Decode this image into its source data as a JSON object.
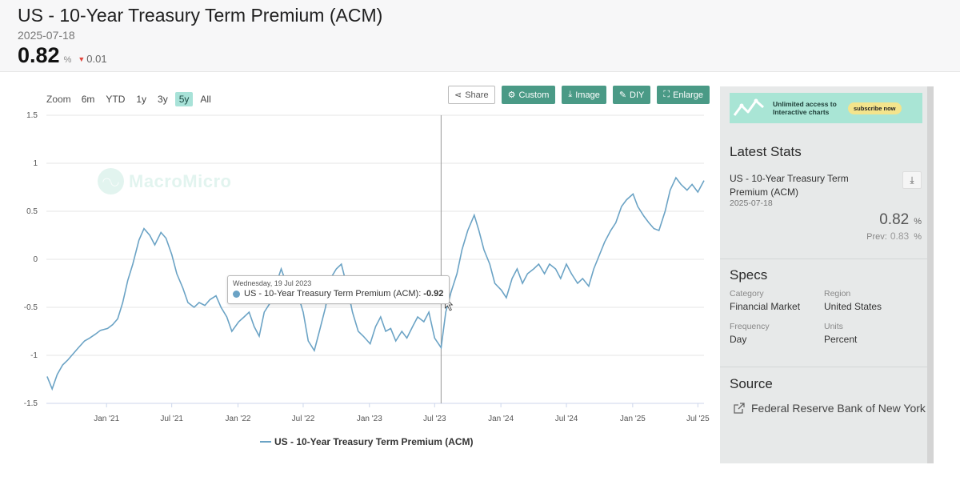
{
  "header": {
    "title": "US - 10-Year Treasury Term Premium (ACM)",
    "date": "2025-07-18",
    "value": "0.82",
    "unit": "%",
    "change": "0.01"
  },
  "zoom": {
    "label": "Zoom",
    "buttons": [
      "6m",
      "YTD",
      "1y",
      "3y",
      "5y",
      "All"
    ],
    "active": "5y"
  },
  "toolbar": {
    "share": "Share",
    "custom": "Custom",
    "image": "Image",
    "diy": "DIY",
    "enlarge": "Enlarge"
  },
  "watermark": "MacroMicro",
  "tooltip": {
    "date": "Wednesday, 19 Jul 2023",
    "series": "US - 10-Year Treasury Term Premium (ACM):",
    "value": "-0.92"
  },
  "chart_data": {
    "type": "line",
    "title": "",
    "xlabel": "",
    "ylabel": "",
    "ylim": [
      -1.5,
      1.5
    ],
    "yticks": [
      "1.5",
      "1",
      "0.5",
      "0",
      "-0.5",
      "-1",
      "-1.5"
    ],
    "xticks": [
      "Jan '21",
      "Jul '21",
      "Jan '22",
      "Jul '22",
      "Jan '23",
      "Jul '23",
      "Jan '24",
      "Jul '24",
      "Jan '25",
      "Jul '25"
    ],
    "xrange": [
      "2020-07-18",
      "2025-07-18"
    ],
    "grid": true,
    "color": "#6ba3c5",
    "crosshair_date": "2023-07-19",
    "series": [
      {
        "name": "US - 10-Year Treasury Term Premium (ACM)",
        "points": [
          [
            "2020-07-20",
            -1.22
          ],
          [
            "2020-08-03",
            -1.35
          ],
          [
            "2020-08-17",
            -1.2
          ],
          [
            "2020-09-01",
            -1.1
          ],
          [
            "2020-09-15",
            -1.05
          ],
          [
            "2020-10-01",
            -0.98
          ],
          [
            "2020-10-15",
            -0.92
          ],
          [
            "2020-11-01",
            -0.85
          ],
          [
            "2020-11-15",
            -0.82
          ],
          [
            "2020-12-01",
            -0.78
          ],
          [
            "2020-12-15",
            -0.74
          ],
          [
            "2021-01-04",
            -0.72
          ],
          [
            "2021-01-18",
            -0.68
          ],
          [
            "2021-02-01",
            -0.62
          ],
          [
            "2021-02-15",
            -0.45
          ],
          [
            "2021-03-01",
            -0.22
          ],
          [
            "2021-03-15",
            -0.05
          ],
          [
            "2021-04-01",
            0.2
          ],
          [
            "2021-04-15",
            0.32
          ],
          [
            "2021-05-01",
            0.25
          ],
          [
            "2021-05-15",
            0.15
          ],
          [
            "2021-06-01",
            0.28
          ],
          [
            "2021-06-15",
            0.22
          ],
          [
            "2021-07-01",
            0.05
          ],
          [
            "2021-07-15",
            -0.15
          ],
          [
            "2021-08-01",
            -0.3
          ],
          [
            "2021-08-15",
            -0.45
          ],
          [
            "2021-09-01",
            -0.5
          ],
          [
            "2021-09-15",
            -0.45
          ],
          [
            "2021-10-01",
            -0.48
          ],
          [
            "2021-10-15",
            -0.42
          ],
          [
            "2021-11-01",
            -0.38
          ],
          [
            "2021-11-15",
            -0.5
          ],
          [
            "2021-12-01",
            -0.6
          ],
          [
            "2021-12-15",
            -0.75
          ],
          [
            "2022-01-03",
            -0.65
          ],
          [
            "2022-01-18",
            -0.6
          ],
          [
            "2022-02-01",
            -0.55
          ],
          [
            "2022-02-15",
            -0.7
          ],
          [
            "2022-03-01",
            -0.8
          ],
          [
            "2022-03-15",
            -0.55
          ],
          [
            "2022-04-01",
            -0.45
          ],
          [
            "2022-04-15",
            -0.28
          ],
          [
            "2022-05-01",
            -0.1
          ],
          [
            "2022-05-15",
            -0.25
          ],
          [
            "2022-06-01",
            -0.2
          ],
          [
            "2022-06-15",
            -0.35
          ],
          [
            "2022-07-01",
            -0.55
          ],
          [
            "2022-07-15",
            -0.85
          ],
          [
            "2022-08-01",
            -0.95
          ],
          [
            "2022-08-15",
            -0.75
          ],
          [
            "2022-09-01",
            -0.5
          ],
          [
            "2022-09-15",
            -0.2
          ],
          [
            "2022-10-01",
            -0.1
          ],
          [
            "2022-10-15",
            -0.05
          ],
          [
            "2022-11-01",
            -0.3
          ],
          [
            "2022-11-15",
            -0.55
          ],
          [
            "2022-12-01",
            -0.75
          ],
          [
            "2022-12-15",
            -0.8
          ],
          [
            "2023-01-03",
            -0.88
          ],
          [
            "2023-01-18",
            -0.7
          ],
          [
            "2023-02-01",
            -0.6
          ],
          [
            "2023-02-15",
            -0.75
          ],
          [
            "2023-03-01",
            -0.72
          ],
          [
            "2023-03-15",
            -0.85
          ],
          [
            "2023-04-01",
            -0.75
          ],
          [
            "2023-04-15",
            -0.82
          ],
          [
            "2023-05-01",
            -0.7
          ],
          [
            "2023-05-15",
            -0.6
          ],
          [
            "2023-06-01",
            -0.65
          ],
          [
            "2023-06-15",
            -0.55
          ],
          [
            "2023-07-01",
            -0.82
          ],
          [
            "2023-07-19",
            -0.92
          ],
          [
            "2023-08-01",
            -0.55
          ],
          [
            "2023-08-15",
            -0.35
          ],
          [
            "2023-09-01",
            -0.15
          ],
          [
            "2023-09-15",
            0.1
          ],
          [
            "2023-10-01",
            0.3
          ],
          [
            "2023-10-19",
            0.46
          ],
          [
            "2023-11-01",
            0.3
          ],
          [
            "2023-11-15",
            0.1
          ],
          [
            "2023-12-01",
            -0.05
          ],
          [
            "2023-12-15",
            -0.25
          ],
          [
            "2024-01-02",
            -0.32
          ],
          [
            "2024-01-16",
            -0.4
          ],
          [
            "2024-02-01",
            -0.2
          ],
          [
            "2024-02-15",
            -0.1
          ],
          [
            "2024-03-01",
            -0.25
          ],
          [
            "2024-03-15",
            -0.15
          ],
          [
            "2024-04-01",
            -0.1
          ],
          [
            "2024-04-15",
            -0.05
          ],
          [
            "2024-05-01",
            -0.15
          ],
          [
            "2024-05-15",
            -0.05
          ],
          [
            "2024-06-01",
            -0.1
          ],
          [
            "2024-06-15",
            -0.2
          ],
          [
            "2024-07-01",
            -0.05
          ],
          [
            "2024-07-15",
            -0.15
          ],
          [
            "2024-08-01",
            -0.25
          ],
          [
            "2024-08-15",
            -0.2
          ],
          [
            "2024-09-01",
            -0.28
          ],
          [
            "2024-09-15",
            -0.1
          ],
          [
            "2024-10-01",
            0.05
          ],
          [
            "2024-10-15",
            0.18
          ],
          [
            "2024-11-01",
            0.3
          ],
          [
            "2024-11-15",
            0.38
          ],
          [
            "2024-12-01",
            0.55
          ],
          [
            "2024-12-15",
            0.62
          ],
          [
            "2025-01-02",
            0.68
          ],
          [
            "2025-01-15",
            0.55
          ],
          [
            "2025-02-01",
            0.45
          ],
          [
            "2025-02-15",
            0.38
          ],
          [
            "2025-03-01",
            0.32
          ],
          [
            "2025-03-15",
            0.3
          ],
          [
            "2025-04-01",
            0.5
          ],
          [
            "2025-04-15",
            0.72
          ],
          [
            "2025-05-01",
            0.85
          ],
          [
            "2025-05-15",
            0.78
          ],
          [
            "2025-06-01",
            0.72
          ],
          [
            "2025-06-15",
            0.78
          ],
          [
            "2025-07-01",
            0.7
          ],
          [
            "2025-07-18",
            0.82
          ]
        ]
      }
    ]
  },
  "legend": "US - 10-Year Treasury Term Premium (ACM)",
  "sidebar": {
    "ad": {
      "text": "Unlimited access to Interactive charts",
      "button": "subscribe now"
    },
    "latest_stats": {
      "title": "Latest Stats",
      "name": "US - 10-Year Treasury Term Premium (ACM)",
      "date": "2025-07-18",
      "value": "0.82",
      "unit": "%",
      "prev_label": "Prev:",
      "prev_value": "0.83",
      "prev_unit": "%"
    },
    "specs": {
      "title": "Specs",
      "category_label": "Category",
      "category": "Financial Market",
      "region_label": "Region",
      "region": "United States",
      "frequency_label": "Frequency",
      "frequency": "Day",
      "units_label": "Units",
      "units": "Percent"
    },
    "source": {
      "title": "Source",
      "name": "Federal Reserve Bank of New York"
    }
  }
}
